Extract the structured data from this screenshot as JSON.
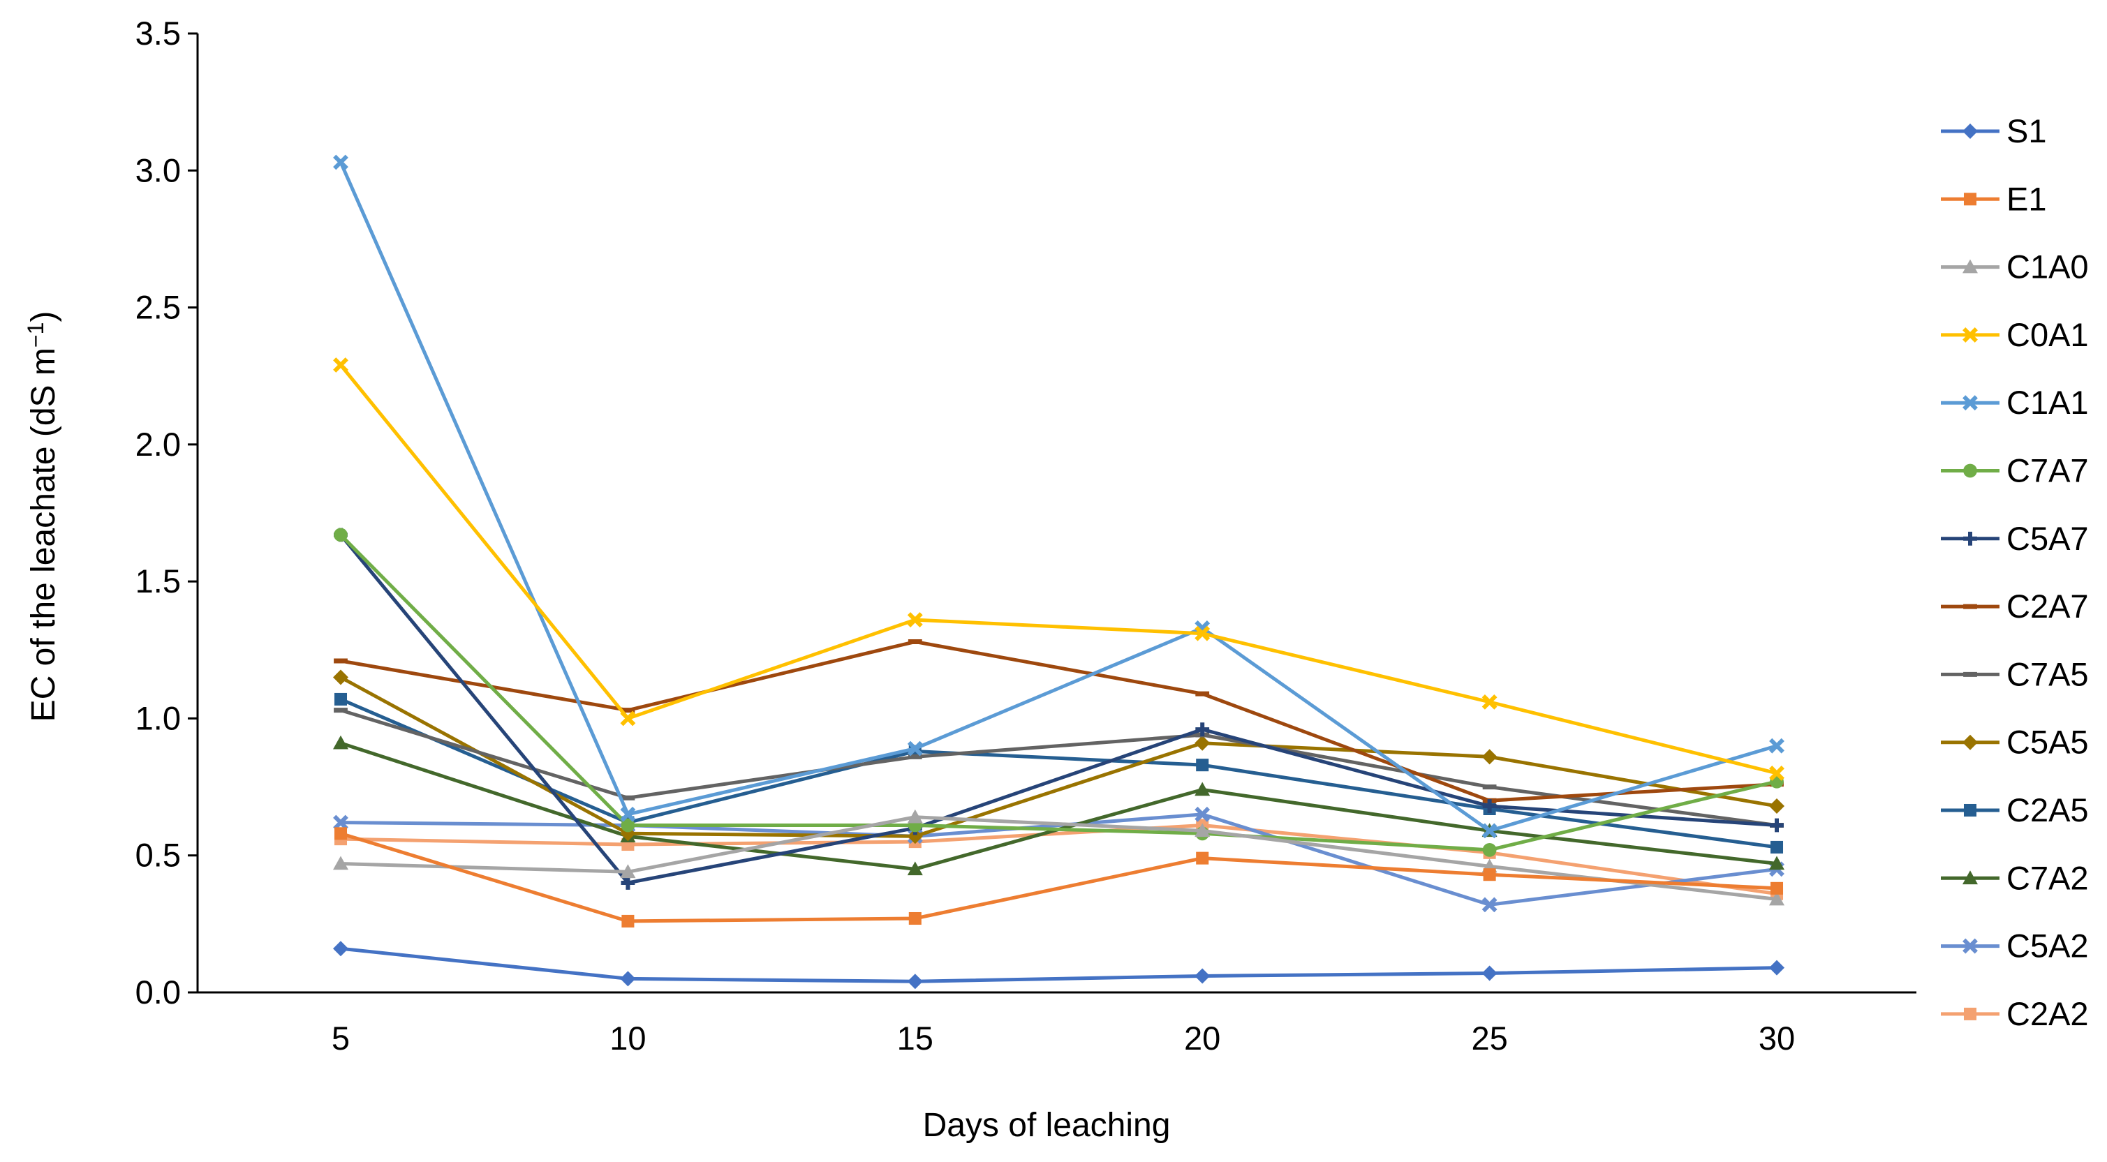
{
  "chart_data": {
    "type": "line",
    "title": "",
    "xlabel": "Days of leaching",
    "ylabel_main": "EC of the leachate (dS m",
    "ylabel_sup": "−1",
    "ylabel_close": ")",
    "x": [
      5,
      10,
      15,
      20,
      25,
      30
    ],
    "x_tick_labels": [
      "5",
      "10",
      "15",
      "20",
      "25",
      "30"
    ],
    "ylim": [
      0,
      3.5
    ],
    "y_ticks": [
      0,
      0.5,
      1.0,
      1.5,
      2.0,
      2.5,
      3.0,
      3.5
    ],
    "y_tick_labels": [
      "0.0",
      "0.5",
      "1.0",
      "1.5",
      "2.0",
      "2.5",
      "3.0",
      "3.5"
    ],
    "legend_position": "right",
    "series": [
      {
        "name": "S1",
        "color": "#4472C4",
        "marker": "diamond",
        "values": [
          0.16,
          0.05,
          0.04,
          0.06,
          0.07,
          0.09
        ]
      },
      {
        "name": "E1",
        "color": "#ED7D31",
        "marker": "square",
        "values": [
          0.58,
          0.26,
          0.27,
          0.49,
          0.43,
          0.38
        ]
      },
      {
        "name": "C1A0",
        "color": "#A5A5A5",
        "marker": "triangle",
        "values": [
          0.47,
          0.44,
          0.64,
          0.59,
          0.46,
          0.34
        ]
      },
      {
        "name": "C0A1",
        "color": "#FFC000",
        "marker": "x",
        "values": [
          2.29,
          1.0,
          1.36,
          1.31,
          1.06,
          0.8
        ]
      },
      {
        "name": "C1A1",
        "color": "#5B9BD5",
        "marker": "x",
        "values": [
          3.03,
          0.65,
          0.89,
          1.33,
          0.59,
          0.9
        ]
      },
      {
        "name": "C7A7",
        "color": "#70AD47",
        "marker": "circle",
        "values": [
          1.67,
          0.61,
          0.61,
          0.58,
          0.52,
          0.77
        ]
      },
      {
        "name": "C5A7",
        "color": "#264478",
        "marker": "plus",
        "values": [
          1.67,
          0.4,
          0.6,
          0.96,
          0.68,
          0.61
        ]
      },
      {
        "name": "C2A7",
        "color": "#9E480E",
        "marker": "dash",
        "values": [
          1.21,
          1.03,
          1.28,
          1.09,
          0.7,
          0.76
        ]
      },
      {
        "name": "C7A5",
        "color": "#636363",
        "marker": "dash",
        "values": [
          1.03,
          0.71,
          0.86,
          0.94,
          0.75,
          0.61
        ]
      },
      {
        "name": "C5A5",
        "color": "#997300",
        "marker": "diamond",
        "values": [
          1.15,
          0.58,
          0.57,
          0.91,
          0.86,
          0.68
        ]
      },
      {
        "name": "C2A5",
        "color": "#255E91",
        "marker": "square",
        "values": [
          1.07,
          0.62,
          0.88,
          0.83,
          0.67,
          0.53
        ]
      },
      {
        "name": "C7A2",
        "color": "#43682B",
        "marker": "triangle",
        "values": [
          0.91,
          0.57,
          0.45,
          0.74,
          0.59,
          0.47
        ]
      },
      {
        "name": "C5A2",
        "color": "#698ED0",
        "marker": "x",
        "values": [
          0.62,
          0.61,
          0.57,
          0.65,
          0.32,
          0.45
        ]
      },
      {
        "name": "C2A2",
        "color": "#F4A170",
        "marker": "square",
        "values": [
          0.56,
          0.54,
          0.55,
          0.61,
          0.51,
          0.36
        ]
      }
    ]
  }
}
